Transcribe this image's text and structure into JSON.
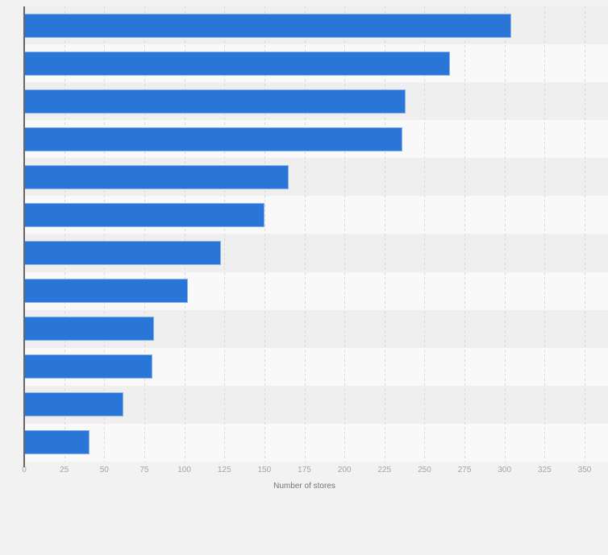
{
  "chart_data": {
    "type": "bar",
    "orientation": "horizontal",
    "title": "",
    "xlabel": "Number of stores",
    "ylabel": "",
    "xlim": [
      0,
      350
    ],
    "xticks": [
      0,
      25,
      50,
      75,
      100,
      125,
      150,
      175,
      200,
      225,
      250,
      275,
      300,
      325,
      350
    ],
    "grid": "vertical-dashed",
    "legend": "none",
    "categories": [
      "",
      "",
      "",
      "",
      "",
      "",
      "",
      "",
      "",
      "",
      "",
      ""
    ],
    "values": [
      304,
      266,
      238,
      236,
      165,
      150,
      123,
      102,
      81,
      80,
      62,
      41
    ]
  },
  "colors": {
    "bar": "#2a76d8",
    "background": "#f2f2f2",
    "row_stripe_dark": "#efefef",
    "row_stripe_light": "#f9f9f9",
    "axis_line": "#666666",
    "tick_label": "#a3a3a3",
    "axis_title": "#737373",
    "gridline": "#d9d9d9"
  }
}
